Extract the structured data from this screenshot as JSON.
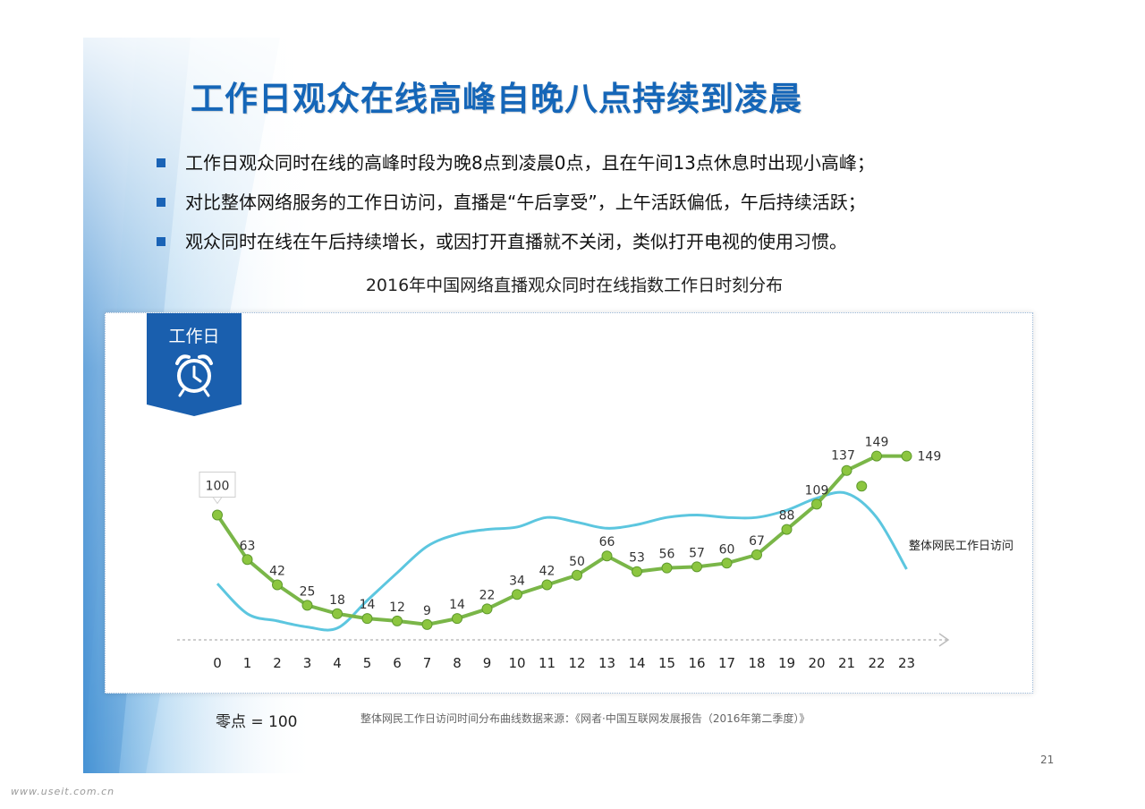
{
  "title": "工作日观众在线高峰自晚八点持续到凌晨",
  "bullets": [
    "工作日观众同时在线的高峰时段为晚8点到凌晨0点，且在午间13点休息时出现小高峰；",
    "对比整体网络服务的工作日访问，直播是“午后享受”，上午活跃偏低，午后持续活跃；",
    "观众同时在线在午后持续增长，或因打开直播就不关闭，类似打开电视的使用习惯。"
  ],
  "badge": {
    "label": "工作日",
    "icon": "alarm-clock-icon"
  },
  "footer": {
    "zero_note": "零点 = 100",
    "source": "整体网民工作日访问时间分布曲线数据来源：《网者·中国互联网发展报告（2016年第二季度）》",
    "page_number": "21"
  },
  "watermark": "www.useit.com.cn",
  "colors": {
    "title": "#1566b8",
    "badge": "#1a5fae",
    "green_series": "#7ab648",
    "green_marker": "#8cc63f",
    "cyan_series": "#5cc6df",
    "axis": "#bdbdbd"
  },
  "chart_data": {
    "type": "line",
    "title": "2016年中国网络直播观众同时在线指数工作日时刻分布",
    "xlabel": "",
    "ylabel": "",
    "x": [
      "0",
      "1",
      "2",
      "3",
      "4",
      "5",
      "6",
      "7",
      "8",
      "9",
      "10",
      "11",
      "12",
      "13",
      "14",
      "15",
      "16",
      "17",
      "18",
      "19",
      "20",
      "21",
      "22",
      "23"
    ],
    "ylim": [
      0,
      155
    ],
    "series": [
      {
        "name": "",
        "values": [
          100,
          63,
          42,
          25,
          18,
          14,
          12,
          9,
          14,
          22,
          34,
          42,
          50,
          66,
          53,
          56,
          57,
          60,
          67,
          88,
          109,
          137,
          149,
          149
        ],
        "labels": [
          "100",
          "63",
          "42",
          "25",
          "18",
          "14",
          "12",
          "9",
          "14",
          "22",
          "34",
          "42",
          "50",
          "66",
          "53",
          "56",
          "57",
          "60",
          "67",
          "88",
          "109",
          "137",
          "149",
          "149"
        ]
      },
      {
        "name": "整体网民工作日访问",
        "values": [
          43,
          18,
          12,
          7,
          6,
          29,
          52,
          74,
          84,
          88,
          90,
          98,
          94,
          89,
          92,
          98,
          100,
          98,
          98,
          104,
          114,
          118,
          98,
          55
        ]
      }
    ],
    "grid": false,
    "legend": "series label at right end of curve"
  }
}
